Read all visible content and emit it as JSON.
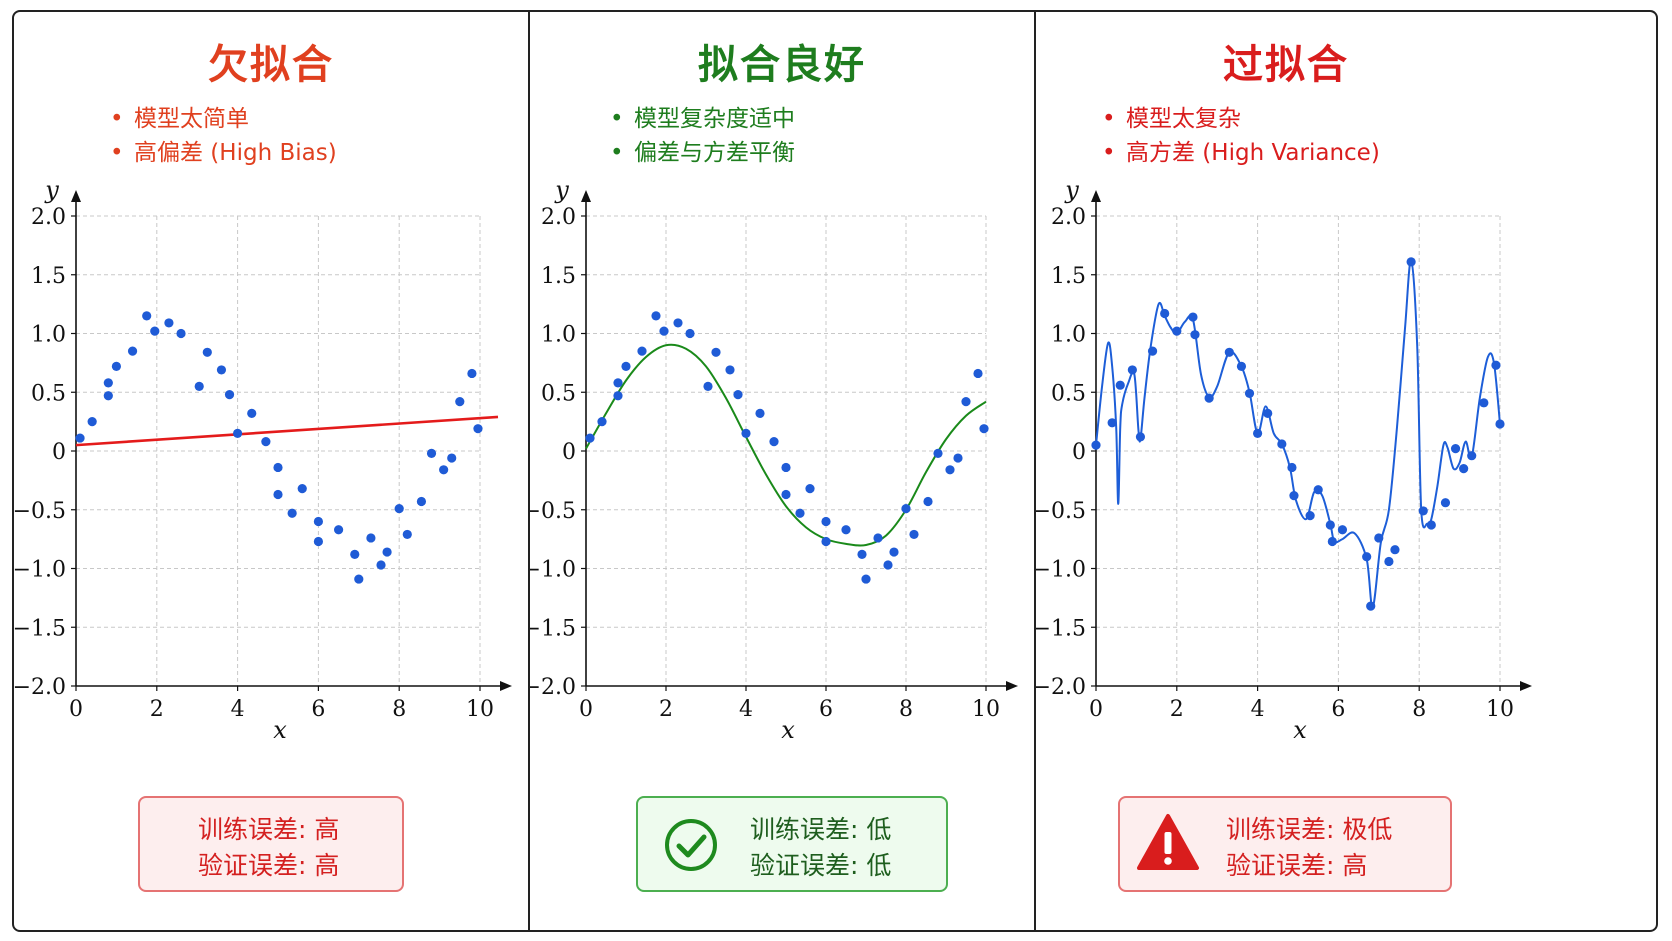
{
  "colors": {
    "red": "#e0401f",
    "green": "#1e7d1e",
    "blue": "#1f5bd6",
    "fit_red": "#e41b1b",
    "fit_green": "#1a8a1a",
    "fit_blue": "#1d5ed8",
    "warn_red": "#d91d1d"
  },
  "panels": [
    {
      "title": "欠拟合",
      "bullets": [
        "模型太简单",
        "高偏差 (High Bias)"
      ],
      "box": {
        "line1": "训练误差: 高",
        "line2": "验证误差: 高",
        "icon": "none"
      }
    },
    {
      "title": "拟合良好",
      "bullets": [
        "模型复杂度适中",
        "偏差与方差平衡"
      ],
      "box": {
        "line1": "训练误差: 低",
        "line2": "验证误差: 低",
        "icon": "check-circle-icon"
      }
    },
    {
      "title": "过拟合",
      "bullets": [
        "模型太复杂",
        "高方差 (High Variance)"
      ],
      "box": {
        "line1": "训练误差: 极低",
        "line2": "验证误差: 高",
        "icon": "warning-triangle-icon"
      }
    }
  ],
  "chart_data": [
    {
      "type": "scatter",
      "xlabel": "x",
      "ylabel": "y",
      "xlim": [
        0,
        10.3
      ],
      "ylim": [
        -2.0,
        2.1
      ],
      "xticks": [
        "0",
        "2",
        "4",
        "6",
        "8",
        "10"
      ],
      "yticks": [
        "2.0",
        "1.5",
        "1.0",
        "0.5",
        "0",
        "−0.5",
        "−1.0",
        "−1.5",
        "−2.0"
      ],
      "grid": true,
      "points": [
        [
          0.1,
          0.11
        ],
        [
          0.4,
          0.25
        ],
        [
          0.8,
          0.58
        ],
        [
          0.8,
          0.47
        ],
        [
          1.0,
          0.72
        ],
        [
          1.4,
          0.85
        ],
        [
          1.75,
          1.15
        ],
        [
          1.95,
          1.02
        ],
        [
          2.3,
          1.09
        ],
        [
          2.6,
          1.0
        ],
        [
          3.05,
          0.55
        ],
        [
          3.25,
          0.84
        ],
        [
          3.6,
          0.69
        ],
        [
          3.8,
          0.48
        ],
        [
          4.0,
          0.15
        ],
        [
          4.35,
          0.32
        ],
        [
          4.7,
          0.08
        ],
        [
          5.0,
          -0.14
        ],
        [
          5.0,
          -0.37
        ],
        [
          5.35,
          -0.53
        ],
        [
          5.6,
          -0.32
        ],
        [
          6.0,
          -0.6
        ],
        [
          6.0,
          -0.77
        ],
        [
          6.5,
          -0.67
        ],
        [
          6.9,
          -0.88
        ],
        [
          7.0,
          -1.09
        ],
        [
          7.3,
          -0.74
        ],
        [
          7.55,
          -0.97
        ],
        [
          7.7,
          -0.86
        ],
        [
          8.0,
          -0.49
        ],
        [
          8.2,
          -0.71
        ],
        [
          8.55,
          -0.43
        ],
        [
          8.8,
          -0.02
        ],
        [
          9.1,
          -0.16
        ],
        [
          9.3,
          -0.06
        ],
        [
          9.5,
          0.42
        ],
        [
          9.8,
          0.66
        ],
        [
          9.95,
          0.19
        ]
      ],
      "fit": {
        "type": "linear",
        "x": [
          0,
          10.3
        ],
        "y": [
          0.05,
          0.29
        ]
      }
    },
    {
      "type": "scatter",
      "xlabel": "x",
      "ylabel": "y",
      "xlim": [
        0,
        10.3
      ],
      "ylim": [
        -2.0,
        2.1
      ],
      "xticks": [
        "0",
        "2",
        "4",
        "6",
        "8",
        "10"
      ],
      "yticks": [
        "2.0",
        "1.5",
        "1.0",
        "0.5",
        "0",
        "−0.5",
        "−1.0",
        "−1.5",
        "−2.0"
      ],
      "grid": true,
      "points": [
        [
          0.1,
          0.11
        ],
        [
          0.4,
          0.25
        ],
        [
          0.8,
          0.58
        ],
        [
          0.8,
          0.47
        ],
        [
          1.0,
          0.72
        ],
        [
          1.4,
          0.85
        ],
        [
          1.75,
          1.15
        ],
        [
          1.95,
          1.02
        ],
        [
          2.3,
          1.09
        ],
        [
          2.6,
          1.0
        ],
        [
          3.05,
          0.55
        ],
        [
          3.25,
          0.84
        ],
        [
          3.6,
          0.69
        ],
        [
          3.8,
          0.48
        ],
        [
          4.0,
          0.15
        ],
        [
          4.35,
          0.32
        ],
        [
          4.7,
          0.08
        ],
        [
          5.0,
          -0.14
        ],
        [
          5.0,
          -0.37
        ],
        [
          5.35,
          -0.53
        ],
        [
          5.6,
          -0.32
        ],
        [
          6.0,
          -0.6
        ],
        [
          6.0,
          -0.77
        ],
        [
          6.5,
          -0.67
        ],
        [
          6.9,
          -0.88
        ],
        [
          7.0,
          -1.09
        ],
        [
          7.3,
          -0.74
        ],
        [
          7.55,
          -0.97
        ],
        [
          7.7,
          -0.86
        ],
        [
          8.0,
          -0.49
        ],
        [
          8.2,
          -0.71
        ],
        [
          8.55,
          -0.43
        ],
        [
          8.8,
          -0.02
        ],
        [
          9.1,
          -0.16
        ],
        [
          9.3,
          -0.06
        ],
        [
          9.5,
          0.42
        ],
        [
          9.8,
          0.66
        ],
        [
          9.95,
          0.19
        ]
      ],
      "fit": {
        "type": "curve",
        "x": [
          0,
          0.5,
          1,
          1.5,
          2,
          2.5,
          3,
          3.5,
          4,
          4.5,
          5,
          5.5,
          6,
          6.5,
          7,
          7.5,
          8,
          8.5,
          9,
          9.5,
          10
        ],
        "y": [
          0.02,
          0.32,
          0.6,
          0.8,
          0.9,
          0.87,
          0.72,
          0.45,
          0.12,
          -0.2,
          -0.47,
          -0.65,
          -0.75,
          -0.79,
          -0.8,
          -0.72,
          -0.5,
          -0.18,
          0.1,
          0.3,
          0.42
        ]
      }
    },
    {
      "type": "scatter",
      "xlabel": "x",
      "ylabel": "y",
      "xlim": [
        0,
        10.3
      ],
      "ylim": [
        -2.0,
        2.1
      ],
      "xticks": [
        "0",
        "2",
        "4",
        "6",
        "8",
        "10"
      ],
      "yticks": [
        "2.0",
        "1.5",
        "1.0",
        "0.5",
        "0",
        "−0.5",
        "−1.0",
        "−1.5",
        "−2.0"
      ],
      "grid": true,
      "points": [
        [
          0.0,
          0.05
        ],
        [
          0.4,
          0.24
        ],
        [
          0.6,
          0.56
        ],
        [
          0.9,
          0.69
        ],
        [
          1.1,
          0.12
        ],
        [
          1.4,
          0.85
        ],
        [
          1.7,
          1.17
        ],
        [
          2.0,
          1.02
        ],
        [
          2.4,
          1.14
        ],
        [
          2.45,
          0.99
        ],
        [
          2.8,
          0.45
        ],
        [
          3.3,
          0.84
        ],
        [
          3.6,
          0.72
        ],
        [
          3.8,
          0.49
        ],
        [
          4.0,
          0.15
        ],
        [
          4.25,
          0.32
        ],
        [
          4.6,
          0.06
        ],
        [
          4.85,
          -0.14
        ],
        [
          4.9,
          -0.38
        ],
        [
          5.3,
          -0.55
        ],
        [
          5.5,
          -0.33
        ],
        [
          5.8,
          -0.63
        ],
        [
          5.85,
          -0.77
        ],
        [
          6.1,
          -0.67
        ],
        [
          6.7,
          -0.9
        ],
        [
          6.8,
          -1.32
        ],
        [
          7.0,
          -0.74
        ],
        [
          7.25,
          -0.94
        ],
        [
          7.4,
          -0.84
        ],
        [
          7.8,
          1.61
        ],
        [
          8.1,
          -0.51
        ],
        [
          8.3,
          -0.63
        ],
        [
          8.65,
          -0.44
        ],
        [
          8.9,
          0.02
        ],
        [
          9.1,
          -0.15
        ],
        [
          9.3,
          -0.04
        ],
        [
          9.6,
          0.41
        ],
        [
          9.9,
          0.73
        ],
        [
          10.0,
          0.23
        ]
      ],
      "fit": {
        "type": "curve",
        "x": [
          0,
          0.15,
          0.3,
          0.4,
          0.5,
          0.55,
          0.6,
          0.65,
          0.8,
          0.95,
          1.05,
          1.1,
          1.2,
          1.35,
          1.55,
          1.7,
          1.85,
          2.0,
          2.2,
          2.4,
          2.6,
          2.8,
          3.0,
          3.3,
          3.6,
          3.8,
          4.0,
          4.2,
          4.4,
          4.6,
          4.8,
          4.95,
          5.2,
          5.4,
          5.6,
          5.8,
          5.9,
          6.1,
          6.4,
          6.7,
          6.85,
          7.05,
          7.25,
          7.45,
          7.65,
          7.8,
          7.95,
          8.05,
          8.2,
          8.3,
          8.45,
          8.6,
          8.7,
          8.85,
          9.0,
          9.15,
          9.3,
          9.5,
          9.7,
          9.85,
          10.0
        ],
        "y": [
          0.05,
          0.55,
          0.92,
          0.72,
          0.2,
          -0.45,
          0.2,
          0.4,
          0.58,
          0.65,
          0.18,
          0.1,
          0.45,
          0.88,
          1.25,
          1.15,
          1.05,
          1.0,
          1.1,
          1.12,
          0.65,
          0.46,
          0.55,
          0.84,
          0.72,
          0.5,
          0.15,
          0.38,
          0.15,
          0.06,
          -0.14,
          -0.42,
          -0.58,
          -0.35,
          -0.38,
          -0.62,
          -0.77,
          -0.75,
          -0.7,
          -0.92,
          -1.33,
          -0.78,
          -0.5,
          0.2,
          1.05,
          1.62,
          0.9,
          -0.5,
          -0.62,
          -0.58,
          -0.3,
          0.05,
          0.03,
          -0.15,
          -0.1,
          0.08,
          -0.05,
          0.45,
          0.8,
          0.75,
          0.23
        ]
      }
    }
  ]
}
